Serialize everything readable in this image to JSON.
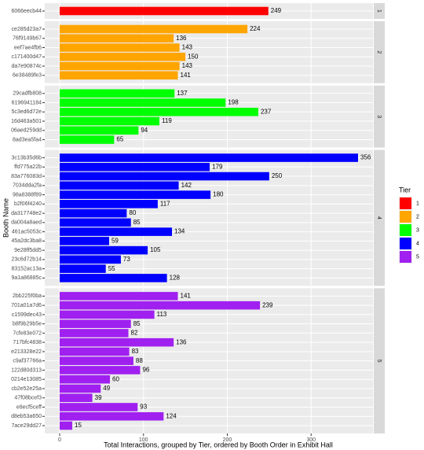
{
  "chart_data": {
    "type": "bar",
    "orientation": "horizontal",
    "x_label": "Total Interactions, grouped by Tier, ordered by Booth Order in Exhibit Hall",
    "y_label": "Booth Name",
    "legend_title": "Tier",
    "legend_position": "right",
    "grid": true,
    "xlim": [
      -17.8,
      373.8
    ],
    "xticks": [
      0,
      100,
      200,
      300
    ],
    "facets": [
      {
        "name": "1",
        "color": "#ff0000",
        "categories": [
          "6066eecb44"
        ],
        "values": [
          249
        ]
      },
      {
        "name": "2",
        "color": "#ffa500",
        "categories": [
          "ce285d23a7",
          "76f9149b67",
          "eef7ae4fb6",
          "c171400d47",
          "da7e90874c",
          "6e38489fe3"
        ],
        "values": [
          224,
          136,
          143,
          150,
          143,
          141
        ]
      },
      {
        "name": "3",
        "color": "#00ff00",
        "categories": [
          "29cadfb808",
          "6196941184",
          "5c3ed6d72e",
          "16d463a501",
          "06aed259dd",
          "8ad3ea5fa4"
        ],
        "values": [
          137,
          198,
          237,
          119,
          94,
          65
        ]
      },
      {
        "name": "4",
        "color": "#0000ff",
        "categories": [
          "3c13b35d6b",
          "ffd775a22b",
          "83a776083d",
          "7034dda2fa",
          "98a8388f89",
          "b2f06f4240",
          "da317748e2",
          "da004a8aed",
          "461ac5053c",
          "45a2dc3ba8",
          "9e28ff5dd5",
          "23c6d72b14",
          "83152ac13a",
          "9a1a86885c"
        ],
        "values": [
          356,
          179,
          250,
          142,
          180,
          117,
          80,
          85,
          134,
          59,
          105,
          73,
          55,
          128
        ]
      },
      {
        "name": "5",
        "color": "#a020f0",
        "categories": [
          "2bb225f0ba",
          "701a01a7d6",
          "c1599dec43",
          "b8f9b29b5e",
          "7cfe83e072",
          "717bfc4838",
          "e213328e22",
          "c9af37766a",
          "122d80d313",
          "0214e13085",
          "cb2e52e25a",
          "47f08bcef3",
          "e8ecf5ceff",
          "d8eb53a650",
          "7ace29dd27"
        ],
        "values": [
          141,
          239,
          113,
          85,
          82,
          136,
          83,
          88,
          96,
          60,
          49,
          39,
          93,
          124,
          15
        ]
      }
    ]
  }
}
